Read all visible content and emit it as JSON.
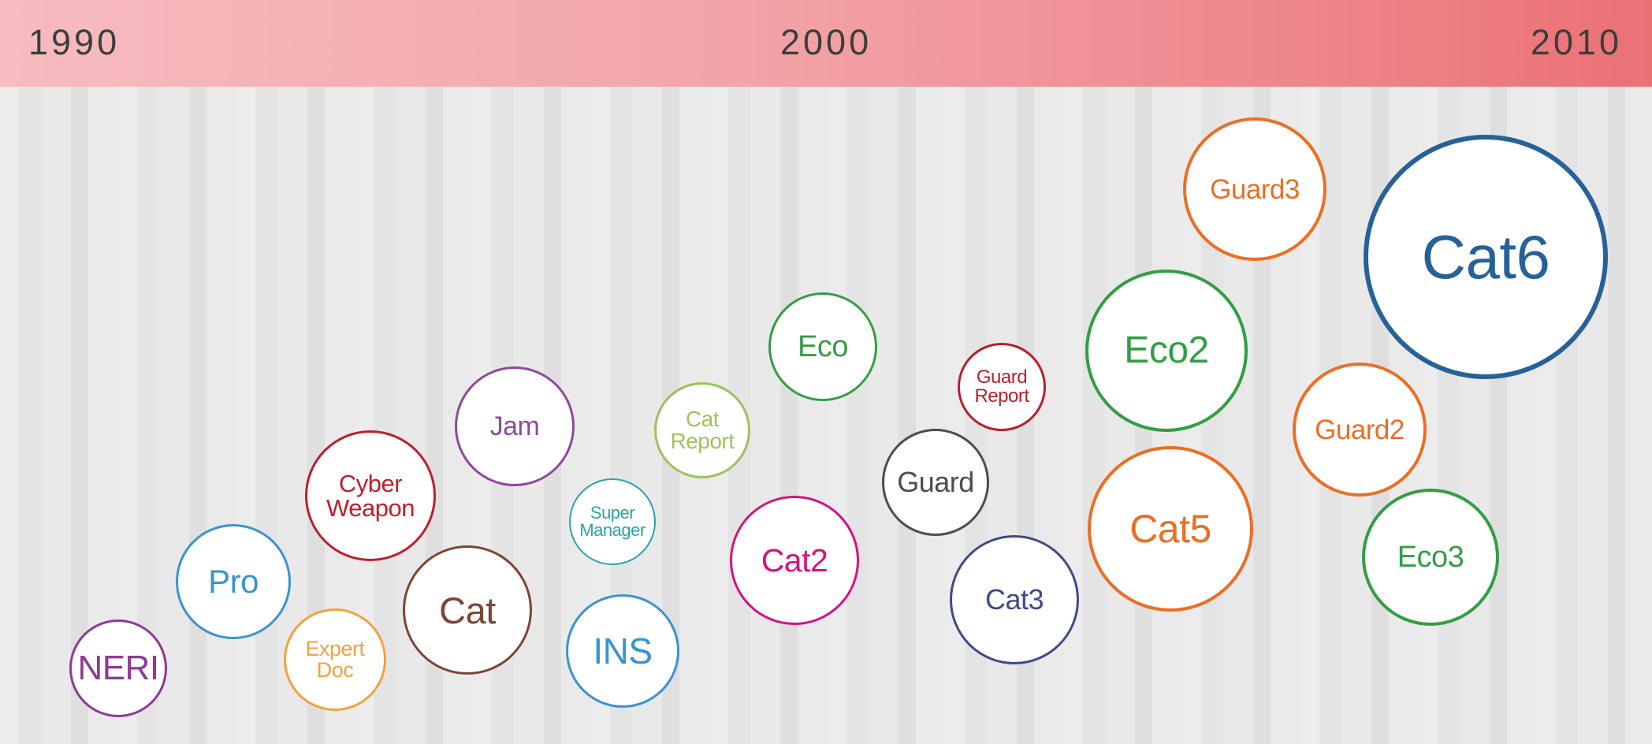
{
  "timeline": {
    "years": {
      "start": "1990",
      "middle": "2000",
      "end": "2010"
    }
  },
  "projects": [
    {
      "id": "neri",
      "label": "NERI",
      "color": "#8e3a93"
    },
    {
      "id": "pro",
      "label": "Pro",
      "color": "#3a94cf"
    },
    {
      "id": "expert-doc",
      "label": "Expert\nDoc",
      "color": "#f0a241"
    },
    {
      "id": "cyber-weapon",
      "label": "Cyber\nWeapon",
      "color": "#be1e2d"
    },
    {
      "id": "cat",
      "label": "Cat",
      "color": "#7b4633"
    },
    {
      "id": "jam",
      "label": "Jam",
      "color": "#8e4a9a"
    },
    {
      "id": "super-manager",
      "label": "Super\nManager",
      "color": "#2aa3a8"
    },
    {
      "id": "ins",
      "label": "INS",
      "color": "#3a94cf"
    },
    {
      "id": "cat-report",
      "label": "Cat\nReport",
      "color": "#9dc25e"
    },
    {
      "id": "cat2",
      "label": "Cat2",
      "color": "#d6127e"
    },
    {
      "id": "eco",
      "label": "Eco",
      "color": "#339e44"
    },
    {
      "id": "guard",
      "label": "Guard",
      "color": "#4d4d4d"
    },
    {
      "id": "guard-report",
      "label": "Guard\nReport",
      "color": "#b8202d"
    },
    {
      "id": "cat3",
      "label": "Cat3",
      "color": "#3f4a86"
    },
    {
      "id": "eco2",
      "label": "Eco2",
      "color": "#339e44"
    },
    {
      "id": "cat5",
      "label": "Cat5",
      "color": "#eb6f24"
    },
    {
      "id": "guard3",
      "label": "Guard3",
      "color": "#eb6f24"
    },
    {
      "id": "guard2",
      "label": "Guard2",
      "color": "#eb6f24"
    },
    {
      "id": "eco3",
      "label": "Eco3",
      "color": "#339e44"
    },
    {
      "id": "cat6",
      "label": "Cat6",
      "color": "#266299"
    }
  ]
}
